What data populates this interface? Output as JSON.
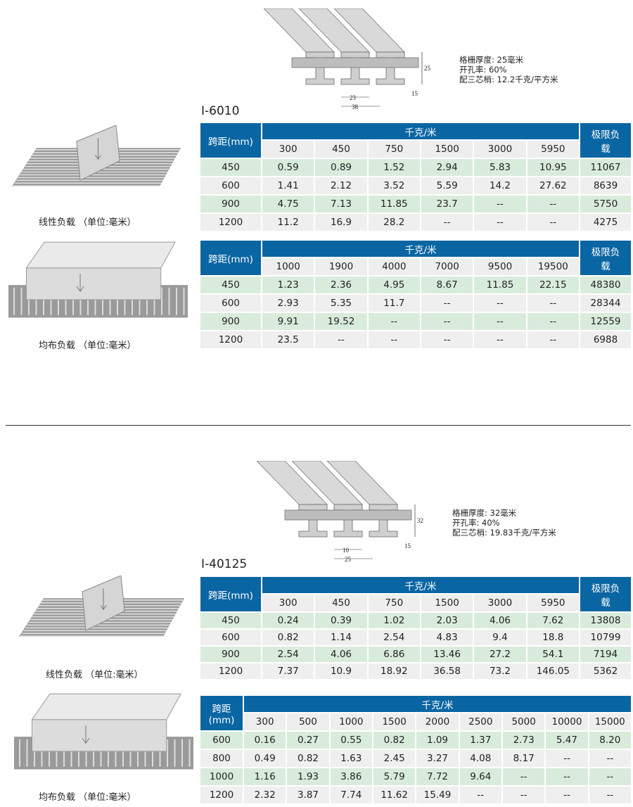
{
  "sections": [
    {
      "title": "I-6010",
      "specs": [
        "格栅厚度: 25毫米",
        "开孔率: 60%",
        "配三芯梢: 12.2千克/平方米"
      ],
      "dims": {
        "height": "25",
        "a": "23",
        "b": "38",
        "c": "15"
      },
      "linear_caption": "线性负载 （单位:毫米）",
      "uniform_caption": "均布负载 （单位:毫米）",
      "tables": [
        {
          "span_header": "跨距(mm)",
          "unit_header": "千克/米",
          "limit_header": "极限负载",
          "loads": [
            "300",
            "450",
            "750",
            "1500",
            "3000",
            "5950"
          ],
          "rows": [
            [
              "450",
              "0.59",
              "0.89",
              "1.52",
              "2.94",
              "5.83",
              "10.95",
              "11067"
            ],
            [
              "600",
              "1.41",
              "2.12",
              "3.52",
              "5.59",
              "14.2",
              "27.62",
              "8639"
            ],
            [
              "900",
              "4.75",
              "7.13",
              "11.85",
              "23.7",
              "--",
              "--",
              "5750"
            ],
            [
              "1200",
              "11.2",
              "16.9",
              "28.2",
              "--",
              "--",
              "--",
              "4275"
            ]
          ]
        },
        {
          "span_header": "跨距(mm)",
          "unit_header": "千克/米",
          "limit_header": "极限负载",
          "loads": [
            "1000",
            "1900",
            "4000",
            "7000",
            "9500",
            "19500"
          ],
          "rows": [
            [
              "450",
              "1.23",
              "2.36",
              "4.95",
              "8.67",
              "11.85",
              "22.15",
              "48380"
            ],
            [
              "600",
              "2.93",
              "5.35",
              "11.7",
              "--",
              "--",
              "--",
              "28344"
            ],
            [
              "900",
              "9.91",
              "19.52",
              "--",
              "--",
              "--",
              "--",
              "12559"
            ],
            [
              "1200",
              "23.5",
              "--",
              "--",
              "--",
              "--",
              "--",
              "6988"
            ]
          ]
        }
      ]
    },
    {
      "title": "I-40125",
      "specs": [
        "格栅厚度: 32毫米",
        "开孔率: 40%",
        "配三芯梢: 19.83千克/平方米"
      ],
      "dims": {
        "height": "32",
        "a": "10",
        "b": "25",
        "c": "15"
      },
      "linear_caption": "线性负载 （单位:毫米）",
      "uniform_caption": "均布负载 （单位:毫米）",
      "tables": [
        {
          "span_header": "跨距(mm)",
          "unit_header": "千克/米",
          "limit_header": "极限负载",
          "loads": [
            "300",
            "450",
            "750",
            "1500",
            "3000",
            "5950"
          ],
          "rows": [
            [
              "450",
              "0.24",
              "0.39",
              "1.02",
              "2.03",
              "4.06",
              "7.62",
              "13808"
            ],
            [
              "600",
              "0.82",
              "1.14",
              "2.54",
              "4.83",
              "9.4",
              "18.8",
              "10799"
            ],
            [
              "900",
              "2.54",
              "4.06",
              "6.86",
              "13.46",
              "27.2",
              "54.1",
              "7194"
            ],
            [
              "1200",
              "7.37",
              "10.9",
              "18.92",
              "36.58",
              "73.2",
              "146.05",
              "5362"
            ]
          ]
        },
        {
          "span_header": "跨距(mm)",
          "unit_header": "千克/米",
          "loads": [
            "300",
            "500",
            "1000",
            "1500",
            "2000",
            "2500",
            "5000",
            "10000",
            "15000"
          ],
          "rows": [
            [
              "600",
              "0.16",
              "0.27",
              "0.55",
              "0.82",
              "1.09",
              "1.37",
              "2.73",
              "5.47",
              "8.20"
            ],
            [
              "800",
              "0.49",
              "0.82",
              "1.63",
              "2.45",
              "3.27",
              "4.08",
              "8.17",
              "--",
              "--"
            ],
            [
              "1000",
              "1.16",
              "1.93",
              "3.86",
              "5.79",
              "7.72",
              "9.64",
              "--",
              "--",
              "--"
            ],
            [
              "1200",
              "2.32",
              "3.87",
              "7.74",
              "11.62",
              "15.49",
              "--",
              "--",
              "--",
              "--"
            ]
          ]
        }
      ]
    }
  ],
  "colors": {
    "header": "#0a66a3",
    "row_green": "#d9ecdc",
    "row_gray": "#efefef"
  }
}
